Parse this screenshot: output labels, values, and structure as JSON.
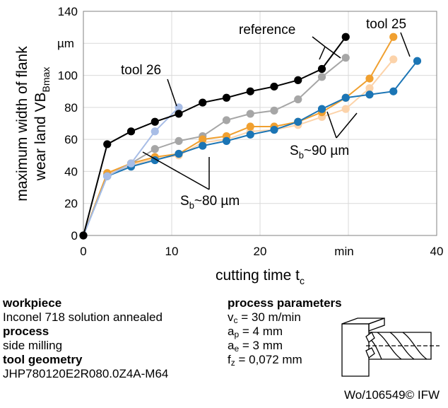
{
  "chart_data": {
    "type": "line",
    "xlabel": "cutting time t",
    "xlabel_sub": "c",
    "x_unit": "min",
    "ylabel_line1": "maximum width of flank",
    "ylabel_line2": "wear land  VB",
    "ylabel_sub": "Bmax",
    "y_unit": "µm",
    "xlim": [
      0,
      40
    ],
    "ylim": [
      0,
      140
    ],
    "xticks": [
      "0",
      "10",
      "20",
      "",
      "40"
    ],
    "xtick_values": [
      0,
      10,
      20,
      30,
      40
    ],
    "yticks": [
      "0",
      "20",
      "40",
      "60",
      "80",
      "100",
      "",
      "140"
    ],
    "ytick_values": [
      0,
      20,
      40,
      60,
      80,
      100,
      120,
      140
    ],
    "grid": true,
    "series": [
      {
        "name": "reference",
        "color": "#000000",
        "x": [
          0,
          2.7,
          5.4,
          8.1,
          10.8,
          13.5,
          16.2,
          18.9,
          21.6,
          24.3,
          27.0,
          29.7
        ],
        "y": [
          0,
          57,
          65,
          71,
          76,
          83,
          86,
          90,
          93,
          97,
          104,
          124
        ]
      },
      {
        "name": "tool 26",
        "color": "#a8bde6",
        "x": [
          0,
          2.7,
          5.4,
          8.1,
          10.8
        ],
        "y": [
          0,
          37,
          45,
          65,
          80
        ]
      },
      {
        "name": "",
        "color": "#a6a6a6",
        "x": [
          0,
          2.7,
          5.4,
          8.1,
          10.8,
          13.5,
          16.2,
          18.9,
          21.6,
          24.3,
          27.0,
          29.7
        ],
        "y": [
          0,
          38,
          45,
          54,
          59,
          62,
          72,
          76,
          78,
          85,
          99,
          111
        ]
      },
      {
        "name": "",
        "color": "#fcd3aa",
        "x": [
          0,
          2.7,
          5.4,
          8.1,
          10.8,
          13.5,
          16.2,
          18.9,
          21.6,
          24.3,
          27.0,
          29.7,
          32.4,
          35.1
        ],
        "y": [
          0,
          38,
          44,
          48,
          50,
          58,
          60,
          65,
          66,
          69,
          74,
          79,
          92,
          110
        ]
      },
      {
        "name": "",
        "color": "#f0a030",
        "x": [
          0,
          2.7,
          5.4,
          8.1,
          10.8,
          13.5,
          16.2,
          18.9,
          21.6,
          24.3,
          27.0,
          29.7,
          32.4,
          35.1
        ],
        "y": [
          0,
          39,
          45,
          49,
          51,
          60,
          62,
          68,
          68,
          71,
          77,
          86,
          98,
          124
        ]
      },
      {
        "name": "tool 25",
        "color": "#1b75b5",
        "x": [
          0,
          2.7,
          5.4,
          8.1,
          10.8,
          13.5,
          16.2,
          18.9,
          21.6,
          24.3,
          27.0,
          29.7,
          32.4,
          35.1,
          37.8
        ],
        "y": [
          0,
          37,
          43,
          47,
          51,
          56,
          59,
          63,
          66,
          71,
          79,
          86,
          88,
          90,
          109
        ]
      }
    ],
    "annotations": {
      "reference": "reference",
      "tool26": "tool 26",
      "tool25": "tool 25",
      "sb80": "S",
      "sb80_sub": "b",
      "sb80_rest": "~80 µm",
      "sb90": "S",
      "sb90_sub": "b",
      "sb90_rest": "~90 µm"
    }
  },
  "info": {
    "workpiece_label": "workpiece",
    "workpiece_value": "Inconel 718 solution annealed",
    "process_label": "process",
    "process_value": "side milling",
    "geometry_label": "tool geometry",
    "geometry_value": "JHP780120E2R080.0Z4A-M64",
    "params_label": "process parameters",
    "params": [
      {
        "sym": "v",
        "sub": "c",
        "rest": " = 30 m/min"
      },
      {
        "sym": "a",
        "sub": "p",
        "rest": " = 4 mm"
      },
      {
        "sym": "a",
        "sub": "e",
        "rest": " = 3 mm"
      },
      {
        "sym": "f",
        "sub": "z",
        "rest": "  = 0,072 mm"
      }
    ]
  },
  "footer": "Wo/106549© IFW"
}
